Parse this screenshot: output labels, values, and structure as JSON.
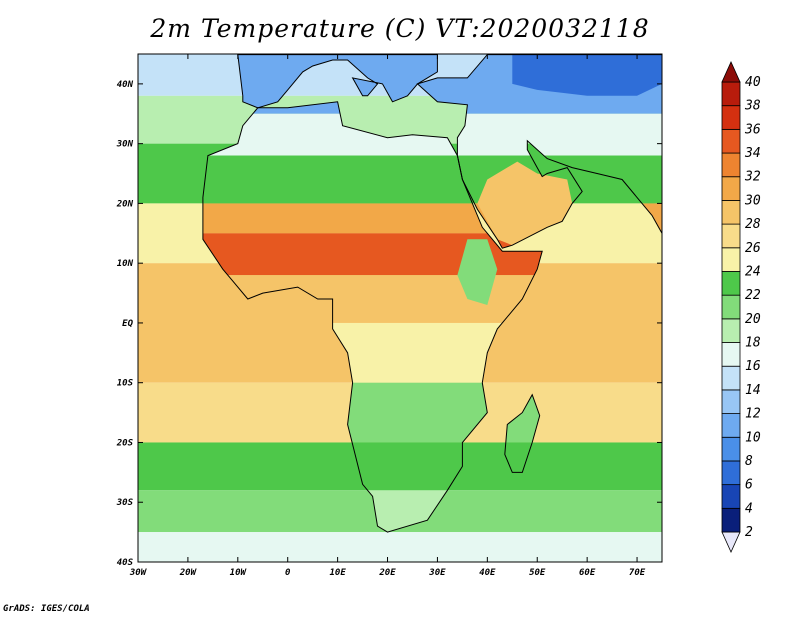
{
  "title": "2m Temperature (C) VT:2020032118",
  "credit": "GrADS: IGES/COLA",
  "map": {
    "lon_range": [
      -30,
      75
    ],
    "lat_range": [
      -40,
      45
    ],
    "lon_ticks": [
      {
        "value": -30,
        "label": "30W"
      },
      {
        "value": -20,
        "label": "20W"
      },
      {
        "value": -10,
        "label": "10W"
      },
      {
        "value": 0,
        "label": "0"
      },
      {
        "value": 10,
        "label": "10E"
      },
      {
        "value": 20,
        "label": "20E"
      },
      {
        "value": 30,
        "label": "30E"
      },
      {
        "value": 40,
        "label": "40E"
      },
      {
        "value": 50,
        "label": "50E"
      },
      {
        "value": 60,
        "label": "60E"
      },
      {
        "value": 70,
        "label": "70E"
      }
    ],
    "lat_ticks": [
      {
        "value": 40,
        "label": "40N"
      },
      {
        "value": 30,
        "label": "30N"
      },
      {
        "value": 20,
        "label": "20N"
      },
      {
        "value": 10,
        "label": "10N"
      },
      {
        "value": 0,
        "label": "EQ"
      },
      {
        "value": -10,
        "label": "10S"
      },
      {
        "value": -20,
        "label": "20S"
      },
      {
        "value": -30,
        "label": "30S"
      },
      {
        "value": -40,
        "label": "40S"
      }
    ]
  },
  "colorbar": {
    "labels": [
      "2",
      "4",
      "6",
      "8",
      "10",
      "12",
      "14",
      "16",
      "18",
      "20",
      "22",
      "24",
      "26",
      "28",
      "30",
      "32",
      "34",
      "36",
      "38",
      "40"
    ],
    "colors": [
      "#e8e8fa",
      "#0a1f7a",
      "#1845b5",
      "#2f6ed8",
      "#4a8fe8",
      "#6eaaf0",
      "#98c6f5",
      "#c4e2f8",
      "#e6f8f2",
      "#b8eeb0",
      "#82dc7a",
      "#4ec84a",
      "#f8f2a8",
      "#f8dc8a",
      "#f5c468",
      "#f2a848",
      "#ee8430",
      "#e65820",
      "#d43010",
      "#b81c0c",
      "#8c0c08"
    ],
    "bounds": [
      2,
      4,
      6,
      8,
      10,
      12,
      14,
      16,
      18,
      20,
      22,
      24,
      26,
      28,
      30,
      32,
      34,
      36,
      38,
      40
    ]
  },
  "field": {
    "land_bands": [
      {
        "lat_min": 35,
        "lat_max": 45,
        "value": 10
      },
      {
        "lat_min": 28,
        "lat_max": 35,
        "value": 17
      },
      {
        "lat_min": 20,
        "lat_max": 28,
        "value": 23
      },
      {
        "lat_min": 15,
        "lat_max": 20,
        "value": 31
      },
      {
        "lat_min": 8,
        "lat_max": 15,
        "value": 35
      },
      {
        "lat_min": 0,
        "lat_max": 8,
        "value": 29
      },
      {
        "lat_min": -10,
        "lat_max": 0,
        "value": 24
      },
      {
        "lat_min": -20,
        "lat_max": -10,
        "value": 21
      },
      {
        "lat_min": -28,
        "lat_max": -20,
        "value": 23
      },
      {
        "lat_min": -36,
        "lat_max": -28,
        "value": 19
      }
    ],
    "ocean_bands": [
      {
        "lat_min": 38,
        "lat_max": 45,
        "value": 15
      },
      {
        "lat_min": 30,
        "lat_max": 38,
        "value": 19
      },
      {
        "lat_min": 20,
        "lat_max": 30,
        "value": 23
      },
      {
        "lat_min": 10,
        "lat_max": 20,
        "value": 25
      },
      {
        "lat_min": -10,
        "lat_max": 10,
        "value": 28
      },
      {
        "lat_min": -20,
        "lat_max": -10,
        "value": 26
      },
      {
        "lat_min": -28,
        "lat_max": -20,
        "value": 23
      },
      {
        "lat_min": -35,
        "lat_max": -28,
        "value": 20
      },
      {
        "lat_min": -40,
        "lat_max": -35,
        "value": 17
      }
    ]
  }
}
